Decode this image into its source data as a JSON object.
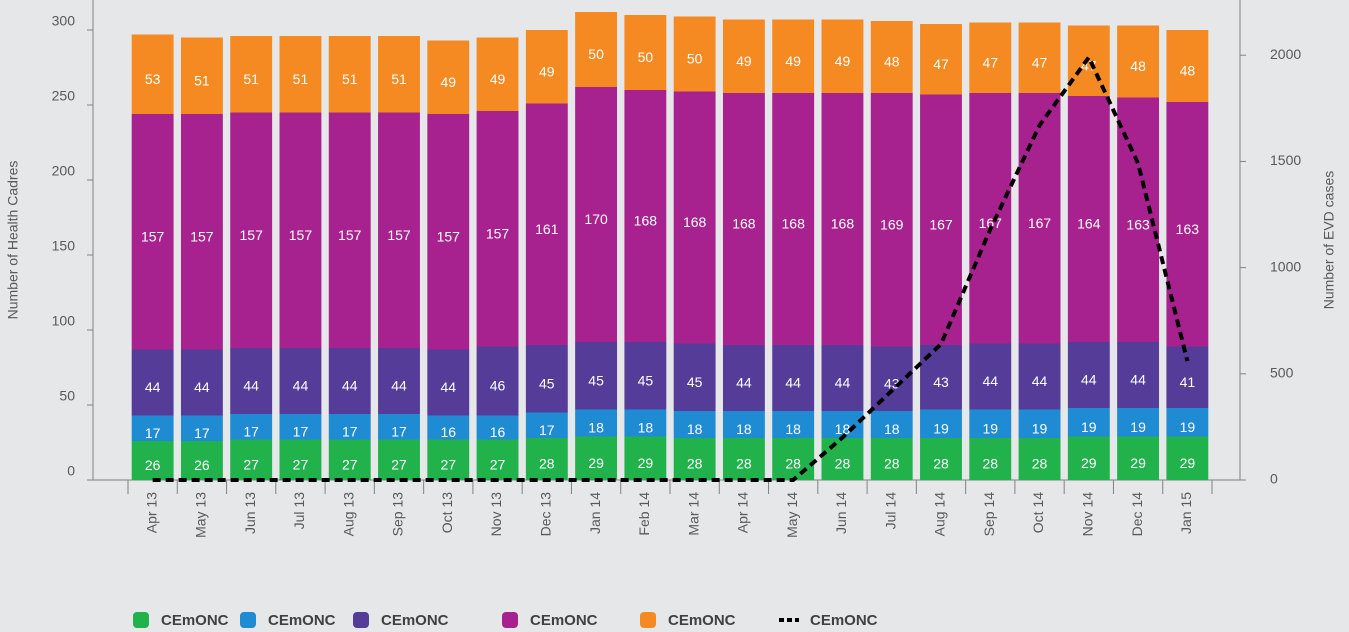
{
  "chart_data": {
    "type": "bar",
    "stacked": true,
    "categories": [
      "Apr 13",
      "May 13",
      "Jun 13",
      "Jul 13",
      "Aug 13",
      "Sep 13",
      "Oct 13",
      "Nov 13",
      "Dec 13",
      "Jan 14",
      "Feb 14",
      "Mar 14",
      "Apr 14",
      "May 14",
      "Jun 14",
      "Jul 14",
      "Aug 14",
      "Sep 14",
      "Oct 14",
      "Nov 14",
      "Dec 14",
      "Jan 15"
    ],
    "ylabel": "Number of Health Cadres",
    "y2label": "Number of EVD cases",
    "ylim": [
      0,
      320
    ],
    "yticks": [
      0,
      50,
      100,
      150,
      200,
      250,
      300
    ],
    "y2lim": [
      0,
      2260
    ],
    "y2ticks": [
      0,
      500,
      1000,
      1500,
      2000
    ],
    "series": [
      {
        "name": "CEmONC",
        "color": "#21b24b",
        "values": [
          26,
          26,
          27,
          27,
          27,
          27,
          27,
          27,
          28,
          29,
          29,
          28,
          28,
          28,
          28,
          28,
          28,
          28,
          28,
          29,
          29,
          29
        ]
      },
      {
        "name": "CEmONC",
        "color": "#1e8bd2",
        "values": [
          17,
          17,
          17,
          17,
          17,
          17,
          16,
          16,
          17,
          18,
          18,
          18,
          18,
          18,
          18,
          18,
          19,
          19,
          19,
          19,
          19,
          19
        ]
      },
      {
        "name": "CEmONC",
        "color": "#553c99",
        "values": [
          44,
          44,
          44,
          44,
          44,
          44,
          44,
          46,
          45,
          45,
          45,
          45,
          44,
          44,
          44,
          43,
          43,
          44,
          44,
          44,
          44,
          41
        ]
      },
      {
        "name": "CEmONC",
        "color": "#a8228f",
        "values": [
          157,
          157,
          157,
          157,
          157,
          157,
          157,
          157,
          161,
          170,
          168,
          168,
          168,
          168,
          168,
          169,
          167,
          167,
          167,
          164,
          163,
          163
        ]
      },
      {
        "name": "CEmONC",
        "color": "#f58a23",
        "values": [
          53,
          51,
          51,
          51,
          51,
          51,
          49,
          49,
          49,
          50,
          50,
          50,
          49,
          49,
          49,
          48,
          47,
          47,
          47,
          47,
          48,
          48
        ]
      },
      {
        "name": "CEmONC",
        "color": "#000000",
        "type": "line",
        "axis": "y2",
        "dashed": true,
        "values": [
          0,
          0,
          0,
          0,
          0,
          0,
          0,
          0,
          0,
          0,
          0,
          0,
          0,
          0,
          200,
          420,
          640,
          1180,
          1670,
          1990,
          1490,
          560
        ]
      }
    ]
  }
}
